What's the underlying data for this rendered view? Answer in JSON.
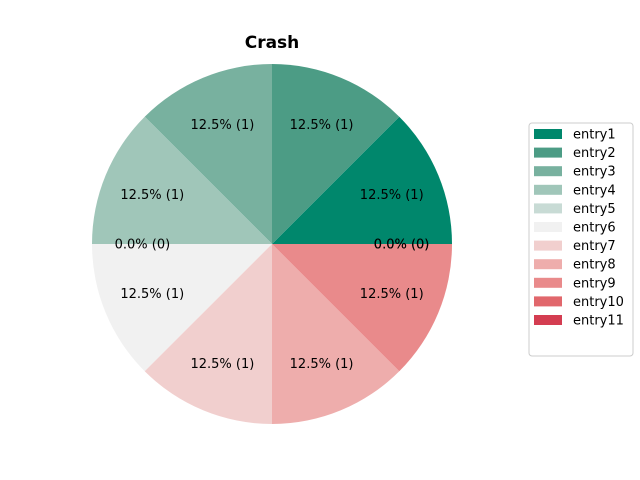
{
  "chart_data": {
    "type": "pie",
    "title": "Crash",
    "series": [
      {
        "name": "entry1",
        "value": 1,
        "label": "12.5%  (1)",
        "color": "#00876c"
      },
      {
        "name": "entry2",
        "value": 1,
        "label": "12.5%  (1)",
        "color": "#4c9c85"
      },
      {
        "name": "entry3",
        "value": 1,
        "label": "12.5%  (1)",
        "color": "#78b19f"
      },
      {
        "name": "entry4",
        "value": 1,
        "label": "12.5%  (1)",
        "color": "#a0c6b9"
      },
      {
        "name": "entry5",
        "value": 0,
        "label": "0.0%  (0)",
        "color": "#c8dbd5"
      },
      {
        "name": "entry6",
        "value": 1,
        "label": "12.5%  (1)",
        "color": "#f1f1f1"
      },
      {
        "name": "entry7",
        "value": 1,
        "label": "12.5%  (1)",
        "color": "#f1cfce"
      },
      {
        "name": "entry8",
        "value": 1,
        "label": "12.5%  (1)",
        "color": "#eeadac"
      },
      {
        "name": "entry9",
        "value": 1,
        "label": "12.5%  (1)",
        "color": "#e98a8b"
      },
      {
        "name": "entry10",
        "value": 0,
        "label": "0.0%  (0)",
        "color": "#e1676c"
      },
      {
        "name": "entry11",
        "value": 0,
        "label": "0.0%  (0)",
        "color": "#d43d51"
      }
    ],
    "legend_position": "right",
    "start_angle_deg": 0,
    "direction": "counterclockwise"
  }
}
